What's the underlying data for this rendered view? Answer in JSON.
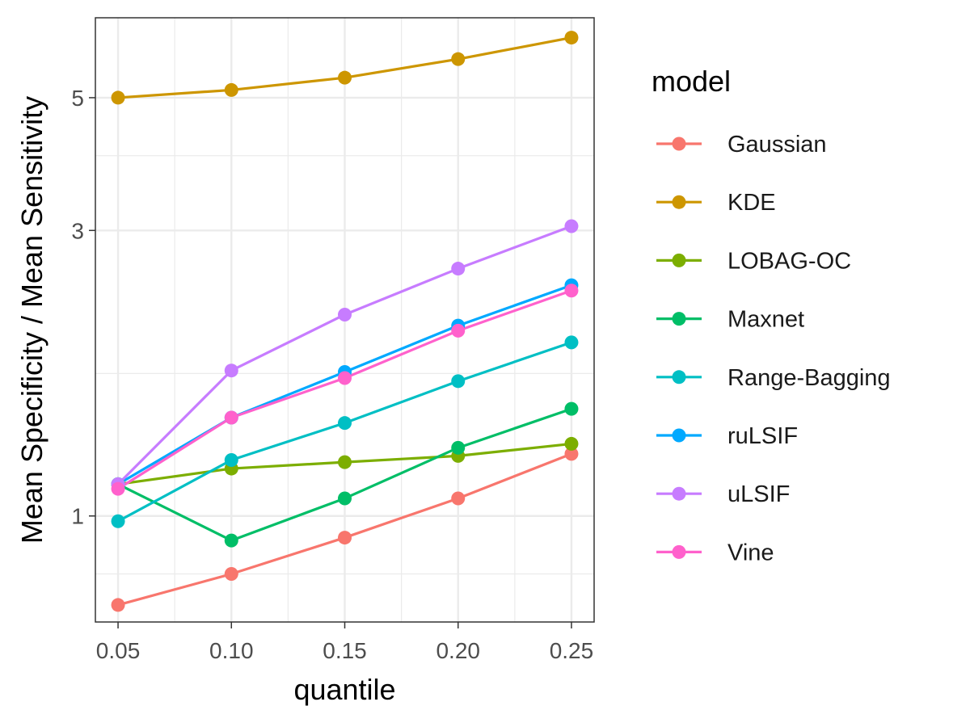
{
  "chart_data": {
    "type": "line",
    "xlabel": "quantile",
    "ylabel": "Mean Specificity / Mean Sensitivity",
    "y_scale": "log",
    "xlim": [
      0.04,
      0.26
    ],
    "ylim": [
      0.665,
      6.8
    ],
    "x_ticks": [
      0.05,
      0.1,
      0.15,
      0.2,
      0.25
    ],
    "x_tick_labels": [
      "0.05",
      "0.10",
      "0.15",
      "0.20",
      "0.25"
    ],
    "y_ticks": [
      1,
      3,
      5
    ],
    "y_tick_labels": [
      "1",
      "3",
      "5"
    ],
    "y_minor_grid": [
      0.8,
      1.73,
      4
    ],
    "x_minor_grid": [
      0.075,
      0.125,
      0.175,
      0.225
    ],
    "grid": true,
    "legend_title": "model",
    "legend_position": "right",
    "x": [
      0.05,
      0.1,
      0.15,
      0.2,
      0.25
    ],
    "series": [
      {
        "name": "Gaussian",
        "color": "#F8766D",
        "values": [
          0.71,
          0.8,
          0.92,
          1.07,
          1.27
        ]
      },
      {
        "name": "KDE",
        "color": "#CD9600",
        "values": [
          5.0,
          5.15,
          5.4,
          5.8,
          6.3
        ]
      },
      {
        "name": "LOBAG-OC",
        "color": "#7CAE00",
        "values": [
          1.13,
          1.2,
          1.23,
          1.26,
          1.32
        ]
      },
      {
        "name": "Maxnet",
        "color": "#00BE67",
        "values": [
          1.13,
          0.91,
          1.07,
          1.3,
          1.51
        ]
      },
      {
        "name": "Range-Bagging",
        "color": "#00BFC4",
        "values": [
          0.98,
          1.24,
          1.43,
          1.68,
          1.95
        ]
      },
      {
        "name": "ruLSIF",
        "color": "#00A9FF",
        "values": [
          1.13,
          1.46,
          1.74,
          2.08,
          2.43
        ]
      },
      {
        "name": "uLSIF",
        "color": "#C77CFF",
        "values": [
          1.13,
          1.75,
          2.17,
          2.59,
          3.05
        ]
      },
      {
        "name": "Vine",
        "color": "#FF61CC",
        "values": [
          1.11,
          1.46,
          1.7,
          2.04,
          2.38
        ]
      }
    ]
  }
}
